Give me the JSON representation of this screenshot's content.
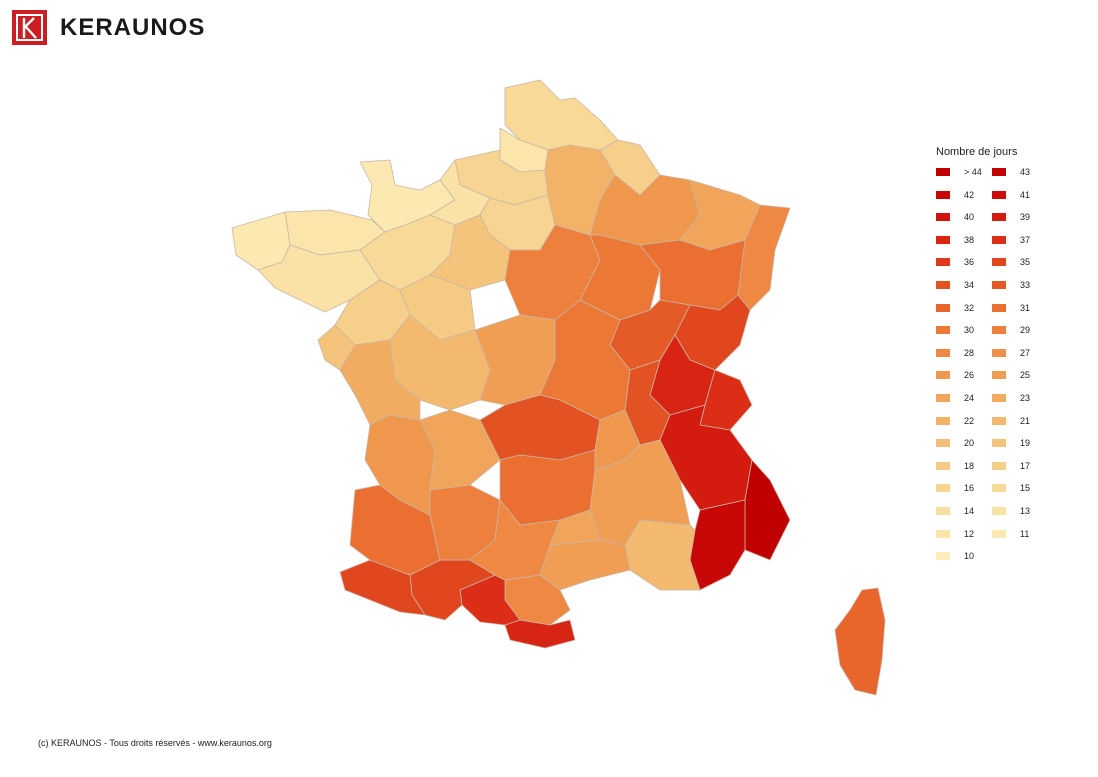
{
  "header": {
    "brand": "KERAUNOS"
  },
  "legend": {
    "title": "Nombre de jours",
    "items": [
      {
        "label": "> 44",
        "color": "#c00000"
      },
      {
        "label": "43",
        "color": "#c40303"
      },
      {
        "label": "42",
        "color": "#c80707"
      },
      {
        "label": "41",
        "color": "#cc0c0a"
      },
      {
        "label": "40",
        "color": "#d0130d"
      },
      {
        "label": "39",
        "color": "#d41b10"
      },
      {
        "label": "38",
        "color": "#d82413"
      },
      {
        "label": "37",
        "color": "#dc2d16"
      },
      {
        "label": "36",
        "color": "#de3a1a"
      },
      {
        "label": "35",
        "color": "#e1471e"
      },
      {
        "label": "34",
        "color": "#e35222"
      },
      {
        "label": "33",
        "color": "#e55b27"
      },
      {
        "label": "32",
        "color": "#e8652c"
      },
      {
        "label": "31",
        "color": "#ea6f31"
      },
      {
        "label": "30",
        "color": "#ec7836"
      },
      {
        "label": "29",
        "color": "#ed803c"
      },
      {
        "label": "28",
        "color": "#ee8842"
      },
      {
        "label": "27",
        "color": "#ef8f48"
      },
      {
        "label": "26",
        "color": "#f0974e"
      },
      {
        "label": "25",
        "color": "#f09e54"
      },
      {
        "label": "24",
        "color": "#f1a55a"
      },
      {
        "label": "23",
        "color": "#f2ac61"
      },
      {
        "label": "22",
        "color": "#f2b267"
      },
      {
        "label": "21",
        "color": "#f3b96e"
      },
      {
        "label": "20",
        "color": "#f3bf75"
      },
      {
        "label": "19",
        "color": "#f4c47c"
      },
      {
        "label": "18",
        "color": "#f5ca83"
      },
      {
        "label": "17",
        "color": "#f6cf8a"
      },
      {
        "label": "16",
        "color": "#f7d491"
      },
      {
        "label": "15",
        "color": "#f8d998"
      },
      {
        "label": "14",
        "color": "#f9dd9f"
      },
      {
        "label": "13",
        "color": "#fae1a5"
      },
      {
        "label": "12",
        "color": "#fbe5ab"
      },
      {
        "label": "11",
        "color": "#fce8b1"
      },
      {
        "label": "10",
        "color": "#fdecb8"
      }
    ]
  },
  "map": {
    "regions": [
      {
        "name": "nord",
        "color": "#f8d998"
      },
      {
        "name": "lille",
        "color": "#fbe5ab"
      },
      {
        "name": "picardie",
        "color": "#f7d491"
      },
      {
        "name": "normandie-manche",
        "color": "#fce8b1"
      },
      {
        "name": "normandie-est",
        "color": "#fae1a5"
      },
      {
        "name": "bretagne-nord",
        "color": "#fbe5ab"
      },
      {
        "name": "bretagne-ouest",
        "color": "#fce8b1"
      },
      {
        "name": "bretagne-sud",
        "color": "#fae1a5"
      },
      {
        "name": "pays-de-loire-nord",
        "color": "#f8d998"
      },
      {
        "name": "pays-de-loire-sud",
        "color": "#f6cf8a"
      },
      {
        "name": "idf",
        "color": "#f7d491"
      },
      {
        "name": "centre-nord",
        "color": "#f4c47c"
      },
      {
        "name": "centre-ouest",
        "color": "#f5ca83"
      },
      {
        "name": "champagne",
        "color": "#f2b267"
      },
      {
        "name": "ardennes",
        "color": "#f6cf8a"
      },
      {
        "name": "lorraine-ouest",
        "color": "#f0974e"
      },
      {
        "name": "lorraine-est",
        "color": "#f1a55a"
      },
      {
        "name": "alsace",
        "color": "#ee8842"
      },
      {
        "name": "bourgogne-ouest",
        "color": "#ed803c"
      },
      {
        "name": "bourgogne-est",
        "color": "#ec7836"
      },
      {
        "name": "franche-comte",
        "color": "#ea6f31"
      },
      {
        "name": "ain-savoie",
        "color": "#e1471e"
      },
      {
        "name": "rhone",
        "color": "#e55b27"
      },
      {
        "name": "isere",
        "color": "#d82413"
      },
      {
        "name": "hautes-alpes",
        "color": "#dc2d16"
      },
      {
        "name": "drome",
        "color": "#e35222"
      },
      {
        "name": "alpes-hte-provence",
        "color": "#d41b10"
      },
      {
        "name": "alpes-maritimes",
        "color": "#c00000"
      },
      {
        "name": "var",
        "color": "#c80707"
      },
      {
        "name": "bouches-du-rhone",
        "color": "#f3b96e"
      },
      {
        "name": "vaucluse-gard",
        "color": "#f09e54"
      },
      {
        "name": "herault",
        "color": "#f09e54"
      },
      {
        "name": "aude",
        "color": "#ee8842"
      },
      {
        "name": "pyrenees-orientales",
        "color": "#d82413"
      },
      {
        "name": "ariege",
        "color": "#dc2d16"
      },
      {
        "name": "haute-garonne",
        "color": "#e1471e"
      },
      {
        "name": "pyrenees-atlantiques",
        "color": "#e1471e"
      },
      {
        "name": "landes",
        "color": "#ea6f31"
      },
      {
        "name": "gironde",
        "color": "#f0974e"
      },
      {
        "name": "lot-et-garonne",
        "color": "#ed803c"
      },
      {
        "name": "dordogne",
        "color": "#f1a55a"
      },
      {
        "name": "poitou",
        "color": "#f3b96e"
      },
      {
        "name": "charente",
        "color": "#f2ac61"
      },
      {
        "name": "vendee",
        "color": "#f4c47c"
      },
      {
        "name": "limousin",
        "color": "#f09e54"
      },
      {
        "name": "auvergne-ouest",
        "color": "#ec7836"
      },
      {
        "name": "cantal",
        "color": "#e35222"
      },
      {
        "name": "lozere-aveyron",
        "color": "#ea6f31"
      },
      {
        "name": "tarn",
        "color": "#ee8842"
      },
      {
        "name": "ardeche",
        "color": "#f0974e"
      },
      {
        "name": "loire",
        "color": "#f1a55a"
      },
      {
        "name": "corse",
        "color": "#e8652c"
      }
    ]
  },
  "footer": {
    "copyright": "(c) KERAUNOS - Tous droits réservés - www.keraunos.org"
  }
}
